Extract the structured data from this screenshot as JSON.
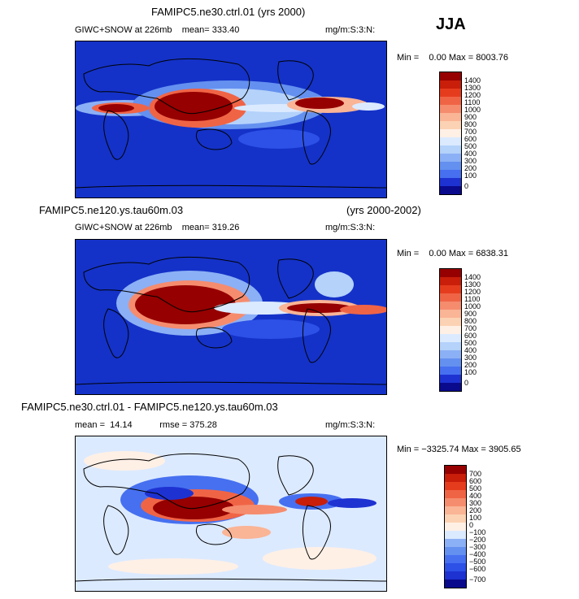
{
  "season": "JJA",
  "colors": {
    "pos": [
      "#0a0a8c",
      "#1414b4",
      "#1e32d2",
      "#2d50e6",
      "#4670f0",
      "#6490f0",
      "#8cb0f5",
      "#b4d2fa",
      "#dceaff",
      "#fff0e6",
      "#fcd2b4",
      "#fab496",
      "#f58c6e",
      "#f06446",
      "#e63c1e",
      "#c81e0a",
      "#960000"
    ],
    "diff": [
      "#0a0a8c",
      "#1414b4",
      "#1e32d2",
      "#2d50e6",
      "#4670f0",
      "#6490f0",
      "#8cb0f5",
      "#dceaff",
      "#fff0e6",
      "#fcd2b4",
      "#fab496",
      "#f58c6e",
      "#f06446",
      "#e63c1e",
      "#c81e0a",
      "#960000"
    ]
  },
  "panels": [
    {
      "title": "FAMIPC5.ne30.ctrl.01 (yrs 2000)",
      "title_right": "",
      "left_text": "GIWC+SNOW at 226mb    mean= 333.40",
      "right_text": "mg/m:S:3:N:",
      "minmax": "Min =    0.00 Max = 8003.76",
      "levels": [
        "1400",
        "1300",
        "1200",
        "1100",
        "1000",
        "900",
        "800",
        "700",
        "600",
        "500",
        "400",
        "300",
        "200",
        "100",
        "0"
      ]
    },
    {
      "title": "FAMIPC5.ne120.ys.tau60m.03",
      "title_right": "(yrs 2000-2002)",
      "left_text": "GIWC+SNOW at 226mb    mean= 319.26",
      "right_text": "mg/m:S:3:N:",
      "minmax": "Min =    0.00 Max = 6838.31",
      "levels": [
        "1400",
        "1300",
        "1200",
        "1100",
        "1000",
        "900",
        "800",
        "700",
        "600",
        "500",
        "400",
        "300",
        "200",
        "100",
        "0"
      ]
    },
    {
      "title": "FAMIPC5.ne30.ctrl.01 - FAMIPC5.ne120.ys.tau60m.03",
      "title_right": "",
      "left_text": "mean =  14.14           rmse = 375.28",
      "right_text": "mg/m:S:3:N:",
      "minmax": "Min = −3325.74 Max = 3905.65",
      "levels": [
        "700",
        "600",
        "500",
        "400",
        "300",
        "200",
        "100",
        "0",
        "−100",
        "−200",
        "−300",
        "−400",
        "−500",
        "−600",
        "−700"
      ]
    }
  ]
}
